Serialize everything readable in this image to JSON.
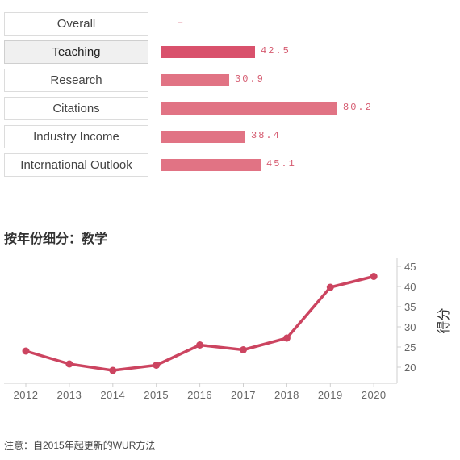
{
  "metrics": [
    {
      "label": "Overall",
      "value": "–",
      "score": null,
      "active": false
    },
    {
      "label": "Teaching",
      "value": "42.5",
      "score": 42.5,
      "active": true
    },
    {
      "label": "Research",
      "value": "30.9",
      "score": 30.9,
      "active": false
    },
    {
      "label": "Citations",
      "value": "80.2",
      "score": 80.2,
      "active": false
    },
    {
      "label": "Industry Income",
      "value": "38.4",
      "score": 38.4,
      "active": false
    },
    {
      "label": "International Outlook",
      "value": "45.1",
      "score": 45.1,
      "active": false
    }
  ],
  "colors": {
    "bar": "#e17384",
    "bar_active": "#d9516c",
    "line": "#cc4460"
  },
  "section_title": "按年份细分：教学",
  "note": "注意：自2015年起更新的WUR方法",
  "chart_data": {
    "type": "line",
    "x": [
      "2012",
      "2013",
      "2014",
      "2015",
      "2016",
      "2017",
      "2018",
      "2019",
      "2020"
    ],
    "series": [
      {
        "values": [
          24.0,
          20.8,
          19.2,
          20.5,
          25.5,
          24.3,
          27.2,
          39.8,
          42.5
        ]
      }
    ],
    "ylabel": "得分",
    "ylim": [
      16,
      47
    ],
    "yticks": [
      20,
      25,
      30,
      35,
      40,
      45
    ],
    "grid": false
  }
}
